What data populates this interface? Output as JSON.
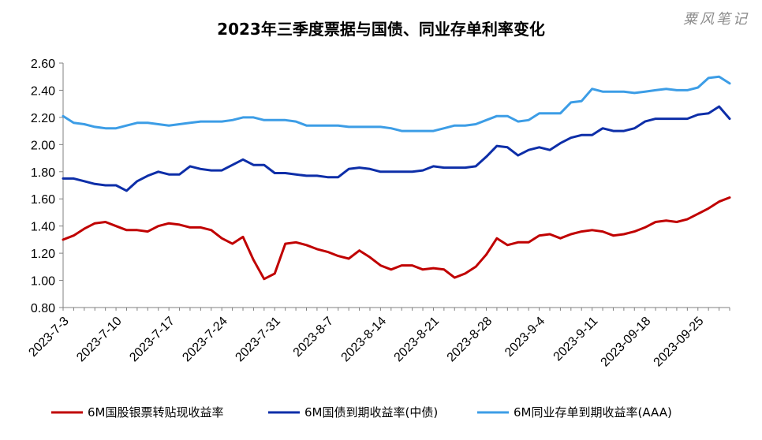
{
  "watermark": "粟风笔记",
  "chart_data": {
    "type": "line",
    "title": "2023年三季度票据与国债、同业存单利率变化",
    "xlabel": "",
    "ylabel": "",
    "ylim": [
      0.8,
      2.6
    ],
    "yticks": [
      "2.60",
      "2.40",
      "2.20",
      "2.00",
      "1.80",
      "1.60",
      "1.40",
      "1.20",
      "1.00",
      "0.80"
    ],
    "x": [
      "2023-7-3",
      "2023-7-4",
      "2023-7-5",
      "2023-7-6",
      "2023-7-7",
      "2023-7-10",
      "2023-7-11",
      "2023-7-12",
      "2023-7-13",
      "2023-7-14",
      "2023-7-17",
      "2023-7-18",
      "2023-7-19",
      "2023-7-20",
      "2023-7-21",
      "2023-7-24",
      "2023-7-25",
      "2023-7-26",
      "2023-7-27",
      "2023-7-28",
      "2023-7-31",
      "2023-8-1",
      "2023-8-2",
      "2023-8-3",
      "2023-8-4",
      "2023-8-7",
      "2023-8-8",
      "2023-8-9",
      "2023-8-10",
      "2023-8-11",
      "2023-8-14",
      "2023-8-15",
      "2023-8-16",
      "2023-8-17",
      "2023-8-18",
      "2023-8-21",
      "2023-8-22",
      "2023-8-23",
      "2023-8-24",
      "2023-8-25",
      "2023-8-28",
      "2023-8-29",
      "2023-8-30",
      "2023-8-31",
      "2023-9-1",
      "2023-9-4",
      "2023-9-5",
      "2023-9-6",
      "2023-9-7",
      "2023-9-8",
      "2023-9-11",
      "2023-9-12",
      "2023-9-13",
      "2023-9-14",
      "2023-9-15",
      "2023-09-18",
      "2023-09-19",
      "2023-09-20",
      "2023-09-21",
      "2023-09-22",
      "2023-09-25",
      "2023-09-26",
      "2023-09-27",
      "2023-09-28"
    ],
    "xtick_labels": [
      "2023-7-3",
      "2023-7-10",
      "2023-7-17",
      "2023-7-24",
      "2023-7-31",
      "2023-8-7",
      "2023-8-14",
      "2023-8-21",
      "2023-8-28",
      "2023-9-4",
      "2023-9-11",
      "2023-09-18",
      "2023-09-25"
    ],
    "legend_position": "bottom",
    "grid": false,
    "series": [
      {
        "name": "6M国股银票转贴现收益率",
        "color": "#c00000",
        "values": [
          1.3,
          1.33,
          1.38,
          1.42,
          1.43,
          1.4,
          1.37,
          1.37,
          1.36,
          1.4,
          1.42,
          1.41,
          1.39,
          1.39,
          1.37,
          1.31,
          1.27,
          1.32,
          1.15,
          1.01,
          1.05,
          1.27,
          1.28,
          1.26,
          1.23,
          1.21,
          1.18,
          1.16,
          1.22,
          1.17,
          1.11,
          1.08,
          1.11,
          1.11,
          1.08,
          1.09,
          1.08,
          1.02,
          1.05,
          1.1,
          1.19,
          1.31,
          1.26,
          1.28,
          1.28,
          1.33,
          1.34,
          1.31,
          1.34,
          1.36,
          1.37,
          1.36,
          1.33,
          1.34,
          1.36,
          1.39,
          1.43,
          1.44,
          1.43,
          1.45,
          1.49,
          1.53,
          1.58,
          1.61
        ]
      },
      {
        "name": "6M国债到期收益率(中债)",
        "color": "#0d2ea8",
        "values": [
          1.75,
          1.75,
          1.73,
          1.71,
          1.7,
          1.7,
          1.66,
          1.73,
          1.77,
          1.8,
          1.78,
          1.78,
          1.84,
          1.82,
          1.81,
          1.81,
          1.85,
          1.89,
          1.85,
          1.85,
          1.79,
          1.79,
          1.78,
          1.77,
          1.77,
          1.76,
          1.76,
          1.82,
          1.83,
          1.82,
          1.8,
          1.8,
          1.8,
          1.8,
          1.81,
          1.84,
          1.83,
          1.83,
          1.83,
          1.84,
          1.91,
          1.99,
          1.98,
          1.92,
          1.96,
          1.98,
          1.96,
          2.01,
          2.05,
          2.07,
          2.07,
          2.12,
          2.1,
          2.1,
          2.12,
          2.17,
          2.19,
          2.19,
          2.19,
          2.19,
          2.22,
          2.23,
          2.28,
          2.19
        ]
      },
      {
        "name": "6M同业存单到期收益率(AAA)",
        "color": "#3c9de6",
        "values": [
          2.21,
          2.16,
          2.15,
          2.13,
          2.12,
          2.12,
          2.14,
          2.16,
          2.16,
          2.15,
          2.14,
          2.15,
          2.16,
          2.17,
          2.17,
          2.17,
          2.18,
          2.2,
          2.2,
          2.18,
          2.18,
          2.18,
          2.17,
          2.14,
          2.14,
          2.14,
          2.14,
          2.13,
          2.13,
          2.13,
          2.13,
          2.12,
          2.1,
          2.1,
          2.1,
          2.1,
          2.12,
          2.14,
          2.14,
          2.15,
          2.18,
          2.21,
          2.21,
          2.17,
          2.18,
          2.23,
          2.23,
          2.23,
          2.31,
          2.32,
          2.41,
          2.39,
          2.39,
          2.39,
          2.38,
          2.39,
          2.4,
          2.41,
          2.4,
          2.4,
          2.42,
          2.49,
          2.5,
          2.45
        ]
      }
    ]
  }
}
